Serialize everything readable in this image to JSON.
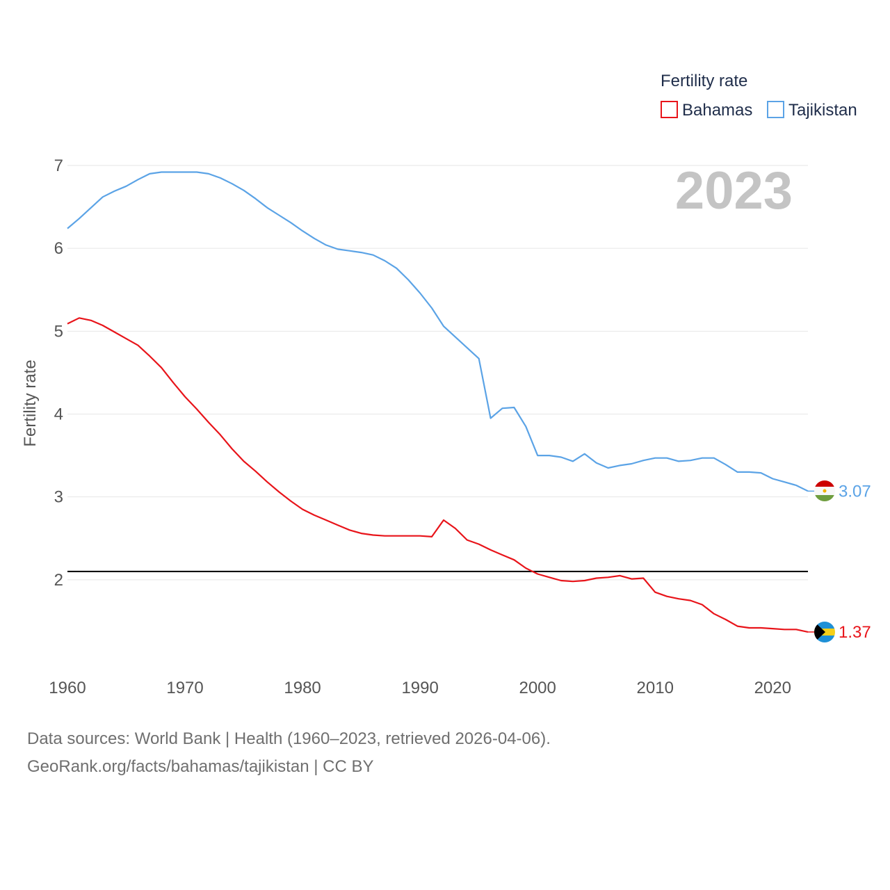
{
  "chart_data": {
    "type": "line",
    "legend_title": "Fertility rate",
    "ylabel": "Fertility rate",
    "xlabel": "",
    "year_label": "2023",
    "xlim": [
      1960,
      2023
    ],
    "ylim": [
      1,
      7
    ],
    "y_ticks": [
      2,
      3,
      4,
      5,
      6,
      7
    ],
    "x_ticks": [
      1960,
      1970,
      1980,
      1990,
      2000,
      2010,
      2020
    ],
    "reference_line": {
      "y": 2.1
    },
    "grid": true,
    "legend_position": "top-right",
    "x": [
      1960,
      1961,
      1962,
      1963,
      1964,
      1965,
      1966,
      1967,
      1968,
      1969,
      1970,
      1971,
      1972,
      1973,
      1974,
      1975,
      1976,
      1977,
      1978,
      1979,
      1980,
      1981,
      1982,
      1983,
      1984,
      1985,
      1986,
      1987,
      1988,
      1989,
      1990,
      1991,
      1992,
      1993,
      1994,
      1995,
      1996,
      1997,
      1998,
      1999,
      2000,
      2001,
      2002,
      2003,
      2004,
      2005,
      2006,
      2007,
      2008,
      2009,
      2010,
      2011,
      2012,
      2013,
      2014,
      2015,
      2016,
      2017,
      2018,
      2019,
      2020,
      2021,
      2022,
      2023
    ],
    "series": [
      {
        "name": "Bahamas",
        "color": "#e8141a",
        "end_label": "1.37",
        "flag": "bahamas-flag-icon",
        "values": [
          5.09,
          5.16,
          5.13,
          5.07,
          4.99,
          4.91,
          4.83,
          4.7,
          4.56,
          4.38,
          4.21,
          4.06,
          3.9,
          3.75,
          3.58,
          3.43,
          3.31,
          3.18,
          3.06,
          2.95,
          2.85,
          2.78,
          2.72,
          2.66,
          2.6,
          2.56,
          2.54,
          2.53,
          2.53,
          2.53,
          2.53,
          2.52,
          2.72,
          2.62,
          2.48,
          2.43,
          2.36,
          2.3,
          2.24,
          2.14,
          2.07,
          2.03,
          1.99,
          1.98,
          1.99,
          2.02,
          2.03,
          2.05,
          2.01,
          2.02,
          1.85,
          1.8,
          1.77,
          1.75,
          1.7,
          1.59,
          1.52,
          1.44,
          1.42,
          1.42,
          1.41,
          1.4,
          1.4,
          1.37
        ]
      },
      {
        "name": "Tajikistan",
        "color": "#5ba3e6",
        "end_label": "3.07",
        "flag": "tajikistan-flag-icon",
        "values": [
          6.24,
          6.36,
          6.49,
          6.62,
          6.69,
          6.75,
          6.83,
          6.9,
          6.92,
          6.92,
          6.92,
          6.92,
          6.9,
          6.85,
          6.78,
          6.7,
          6.6,
          6.49,
          6.4,
          6.31,
          6.21,
          6.12,
          6.04,
          5.99,
          5.97,
          5.95,
          5.92,
          5.85,
          5.76,
          5.62,
          5.46,
          5.28,
          5.06,
          4.93,
          4.8,
          4.67,
          3.95,
          4.07,
          4.08,
          3.85,
          3.5,
          3.5,
          3.48,
          3.43,
          3.52,
          3.41,
          3.35,
          3.38,
          3.4,
          3.44,
          3.47,
          3.47,
          3.43,
          3.44,
          3.47,
          3.47,
          3.39,
          3.3,
          3.3,
          3.29,
          3.22,
          3.18,
          3.14,
          3.07
        ]
      }
    ]
  },
  "footer": {
    "line1": "Data sources: World Bank | Health (1960–2023, retrieved 2026-04-06).",
    "line2": "GeoRank.org/facts/bahamas/tajikistan | CC BY"
  }
}
